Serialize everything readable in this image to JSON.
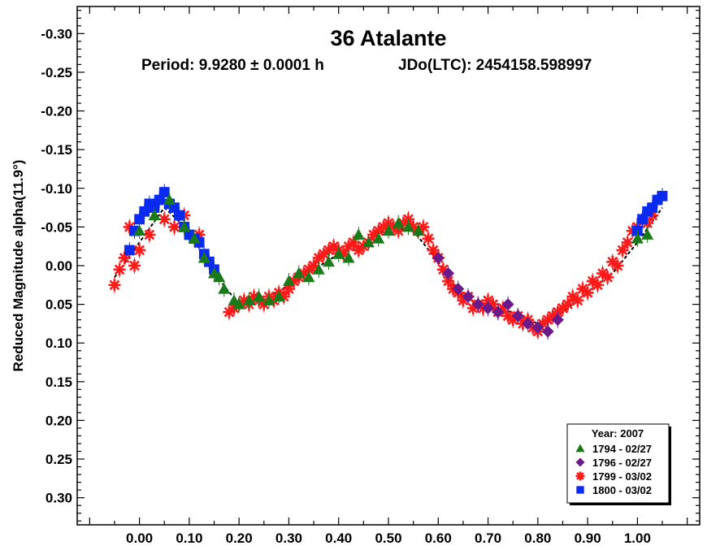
{
  "chart_data": {
    "type": "scatter",
    "title": "36 Atalante",
    "subtitle_period": "Period: 9.9280 ± 0.0001 h",
    "subtitle_epoch": "JDo(LTC): 2454158.598997",
    "xlabel": "",
    "ylabel": "Reduced Magnitude alpha(11.9°)",
    "xlim": [
      -0.125,
      1.125
    ],
    "ylim": [
      0.335,
      -0.335
    ],
    "y_inverted": true,
    "grid": false,
    "x_ticks": [
      0.0,
      0.1,
      0.2,
      0.3,
      0.4,
      0.5,
      0.6,
      0.7,
      0.8,
      0.9,
      1.0
    ],
    "x_tick_labels": [
      "0.00",
      "0.10",
      "0.20",
      "0.30",
      "0.40",
      "0.50",
      "0.60",
      "0.70",
      "0.80",
      "0.90",
      "1.00"
    ],
    "y_ticks": [
      -0.3,
      -0.25,
      -0.2,
      -0.15,
      -0.1,
      -0.05,
      0.0,
      0.05,
      0.1,
      0.15,
      0.2,
      0.25,
      0.3
    ],
    "y_tick_labels": [
      "-0.30",
      "-0.25",
      "-0.20",
      "-0.15",
      "-0.10",
      "-0.05",
      "0.00",
      "0.05",
      "0.10",
      "0.15",
      "0.20",
      "0.25",
      "0.30"
    ],
    "fit_curve": {
      "color": "#000000",
      "x": [
        -0.05,
        0.0,
        0.05,
        0.1,
        0.15,
        0.2,
        0.25,
        0.3,
        0.35,
        0.4,
        0.45,
        0.5,
        0.55,
        0.6,
        0.65,
        0.7,
        0.75,
        0.8,
        0.85,
        0.9,
        0.95,
        1.0,
        1.05
      ],
      "y": [
        0.015,
        -0.03,
        -0.075,
        -0.045,
        0.01,
        0.05,
        0.045,
        0.025,
        0.005,
        -0.015,
        -0.025,
        -0.05,
        -0.045,
        -0.005,
        0.04,
        0.055,
        0.06,
        0.075,
        0.06,
        0.035,
        0.01,
        -0.03,
        -0.075
      ]
    },
    "legend": {
      "title": "Year: 2007",
      "placement": "bottom-right"
    },
    "series": [
      {
        "name": "1794 - 02/27",
        "marker": "triangle",
        "color": "#1a7a1a",
        "x": [
          0.0,
          0.03,
          0.06,
          0.09,
          0.11,
          0.13,
          0.15,
          0.16,
          0.17,
          0.19,
          0.2,
          0.22,
          0.24,
          0.26,
          0.28,
          0.3,
          0.32,
          0.34,
          0.36,
          0.38,
          0.4,
          0.42,
          0.44,
          0.46,
          0.48,
          0.5,
          0.52,
          0.54,
          0.56,
          1.0,
          1.02
        ],
        "y": [
          -0.045,
          -0.065,
          -0.085,
          -0.05,
          -0.035,
          -0.01,
          0.01,
          0.015,
          0.03,
          0.045,
          0.05,
          0.045,
          0.04,
          0.045,
          0.04,
          0.02,
          0.01,
          0.015,
          0.005,
          -0.005,
          -0.015,
          -0.01,
          -0.04,
          -0.03,
          -0.035,
          -0.045,
          -0.055,
          -0.05,
          -0.045,
          -0.035,
          -0.04
        ]
      },
      {
        "name": "1796 - 02/27",
        "marker": "diamond",
        "color": "#6a1a8a",
        "x": [
          0.6,
          0.62,
          0.64,
          0.66,
          0.68,
          0.7,
          0.72,
          0.74,
          0.76,
          0.78,
          0.8,
          0.82,
          0.84
        ],
        "y": [
          -0.01,
          0.01,
          0.03,
          0.04,
          0.05,
          0.055,
          0.06,
          0.05,
          0.065,
          0.075,
          0.08,
          0.085,
          0.07
        ]
      },
      {
        "name": "1799 - 03/02",
        "marker": "asterisk",
        "color": "#ff1a1a",
        "x": [
          -0.05,
          -0.04,
          -0.03,
          -0.02,
          -0.01,
          0.0,
          0.02,
          0.05,
          0.07,
          0.09,
          0.12,
          0.18,
          0.19,
          0.2,
          0.21,
          0.22,
          0.23,
          0.24,
          0.25,
          0.26,
          0.27,
          0.28,
          0.29,
          0.3,
          0.31,
          0.32,
          0.33,
          0.34,
          0.35,
          0.36,
          0.37,
          0.38,
          0.39,
          0.4,
          0.41,
          0.42,
          0.43,
          0.44,
          0.45,
          0.46,
          0.47,
          0.48,
          0.49,
          0.5,
          0.51,
          0.52,
          0.53,
          0.54,
          0.55,
          0.56,
          0.57,
          0.58,
          0.59,
          0.6,
          0.61,
          0.62,
          0.63,
          0.64,
          0.65,
          0.66,
          0.67,
          0.68,
          0.69,
          0.7,
          0.71,
          0.72,
          0.73,
          0.74,
          0.75,
          0.76,
          0.77,
          0.78,
          0.79,
          0.8,
          0.81,
          0.82,
          0.83,
          0.84,
          0.85,
          0.86,
          0.87,
          0.88,
          0.89,
          0.9,
          0.91,
          0.92,
          0.93,
          0.94,
          0.95,
          0.96,
          0.97,
          0.98,
          0.99,
          1.0,
          1.01,
          1.02,
          1.03
        ],
        "y": [
          0.025,
          0.005,
          -0.01,
          -0.05,
          0.0,
          -0.02,
          -0.04,
          -0.06,
          -0.05,
          -0.065,
          -0.04,
          0.06,
          0.055,
          0.05,
          0.045,
          0.05,
          0.04,
          0.045,
          0.05,
          0.04,
          0.045,
          0.035,
          0.04,
          0.03,
          0.02,
          0.015,
          0.01,
          0.005,
          0.0,
          -0.01,
          -0.015,
          -0.02,
          -0.025,
          -0.02,
          -0.015,
          -0.025,
          -0.03,
          -0.02,
          -0.025,
          -0.03,
          -0.04,
          -0.045,
          -0.05,
          -0.055,
          -0.05,
          -0.045,
          -0.055,
          -0.06,
          -0.05,
          -0.045,
          -0.05,
          -0.035,
          -0.02,
          -0.01,
          0.005,
          0.02,
          0.03,
          0.035,
          0.045,
          0.04,
          0.055,
          0.05,
          0.055,
          0.045,
          0.05,
          0.06,
          0.055,
          0.065,
          0.07,
          0.065,
          0.075,
          0.07,
          0.08,
          0.085,
          0.075,
          0.07,
          0.065,
          0.06,
          0.055,
          0.05,
          0.04,
          0.045,
          0.03,
          0.035,
          0.02,
          0.025,
          0.01,
          0.015,
          -0.005,
          0.0,
          -0.02,
          -0.03,
          -0.045,
          -0.05,
          -0.06,
          -0.055,
          -0.065
        ]
      },
      {
        "name": "1800 - 03/02",
        "marker": "square",
        "color": "#0a2af0",
        "x": [
          -0.02,
          -0.01,
          0.0,
          0.01,
          0.02,
          0.03,
          0.04,
          0.05,
          0.06,
          0.07,
          0.08,
          0.09,
          0.1,
          0.11,
          0.12,
          0.13,
          0.14,
          0.15,
          1.0,
          1.01,
          1.02,
          1.03,
          1.04,
          1.05
        ],
        "y": [
          -0.02,
          -0.045,
          -0.06,
          -0.07,
          -0.08,
          -0.075,
          -0.085,
          -0.095,
          -0.08,
          -0.075,
          -0.065,
          -0.05,
          -0.04,
          -0.035,
          -0.03,
          -0.015,
          -0.005,
          0.005,
          -0.045,
          -0.06,
          -0.07,
          -0.075,
          -0.085,
          -0.09
        ]
      }
    ]
  }
}
